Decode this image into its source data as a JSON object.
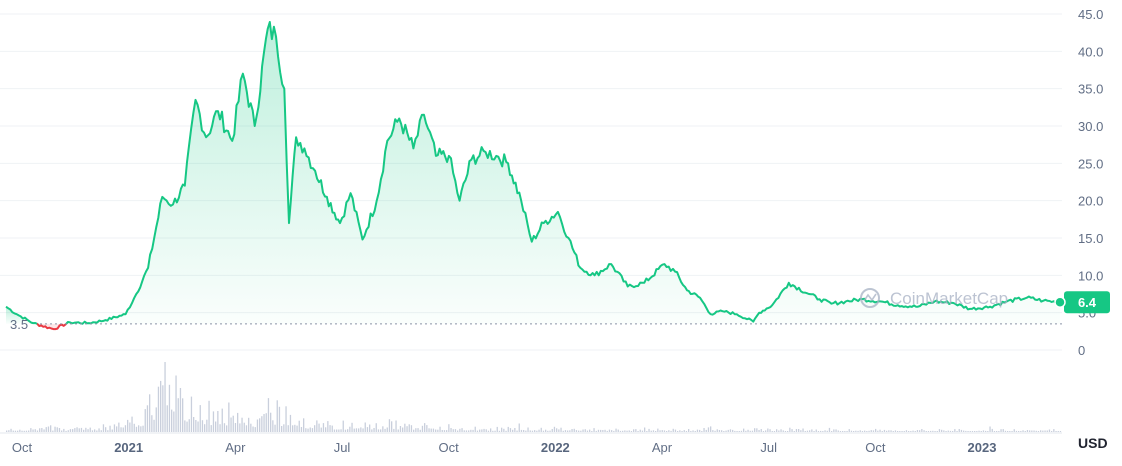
{
  "chart_data": {
    "type": "line",
    "currency_label": "USD",
    "watermark": "CoinMarketCap",
    "reference_value": 3.5,
    "reference_label": "3.5",
    "current_value": 6.4,
    "current_label": "6.4",
    "ylim": [
      0,
      45
    ],
    "yticks": [
      "45.0",
      "40.0",
      "35.0",
      "30.0",
      "25.0",
      "20.0",
      "15.0",
      "10.0",
      "5.0",
      "0"
    ],
    "ytick_values": [
      45,
      40,
      35,
      30,
      25,
      20,
      15,
      10,
      5,
      0
    ],
    "xticks": [
      {
        "label": "Oct",
        "bold": false,
        "t": 0.0
      },
      {
        "label": "2021",
        "bold": true,
        "t": 0.1
      },
      {
        "label": "Apr",
        "bold": false,
        "t": 0.2
      },
      {
        "label": "Jul",
        "bold": false,
        "t": 0.3
      },
      {
        "label": "Oct",
        "bold": false,
        "t": 0.4
      },
      {
        "label": "2022",
        "bold": true,
        "t": 0.5
      },
      {
        "label": "Apr",
        "bold": false,
        "t": 0.6
      },
      {
        "label": "Jul",
        "bold": false,
        "t": 0.7
      },
      {
        "label": "Oct",
        "bold": false,
        "t": 0.8
      },
      {
        "label": "2023",
        "bold": true,
        "t": 0.9
      }
    ],
    "x": [
      "2020-09-22",
      "2020-10-01",
      "2020-10-15",
      "2020-11-01",
      "2020-11-15",
      "2020-12-01",
      "2020-12-15",
      "2021-01-01",
      "2021-01-10",
      "2021-01-20",
      "2021-02-01",
      "2021-02-10",
      "2021-02-20",
      "2021-03-01",
      "2021-03-10",
      "2021-03-20",
      "2021-04-01",
      "2021-04-10",
      "2021-04-20",
      "2021-05-01",
      "2021-05-08",
      "2021-05-15",
      "2021-05-19",
      "2021-05-25",
      "2021-06-01",
      "2021-06-10",
      "2021-06-20",
      "2021-07-01",
      "2021-07-10",
      "2021-07-20",
      "2021-08-01",
      "2021-08-10",
      "2021-08-20",
      "2021-09-01",
      "2021-09-10",
      "2021-09-20",
      "2021-10-01",
      "2021-10-10",
      "2021-10-20",
      "2021-11-01",
      "2021-11-10",
      "2021-11-20",
      "2021-12-01",
      "2021-12-10",
      "2021-12-20",
      "2022-01-01",
      "2022-01-10",
      "2022-01-20",
      "2022-02-01",
      "2022-02-15",
      "2022-03-01",
      "2022-03-15",
      "2022-04-01",
      "2022-04-10",
      "2022-04-20",
      "2022-05-01",
      "2022-05-10",
      "2022-05-20",
      "2022-06-01",
      "2022-06-15",
      "2022-06-20",
      "2022-07-01",
      "2022-07-15",
      "2022-08-01",
      "2022-08-10",
      "2022-08-20",
      "2022-09-01",
      "2022-09-15",
      "2022-10-01",
      "2022-10-15",
      "2022-11-01",
      "2022-11-15",
      "2022-12-01",
      "2022-12-15",
      "2023-01-01",
      "2023-01-15",
      "2023-02-01",
      "2023-02-15",
      "2023-03-01"
    ],
    "y": [
      5.8,
      4.8,
      3.6,
      2.8,
      3.7,
      3.6,
      4.0,
      4.8,
      7.5,
      11.0,
      20.5,
      19.5,
      22.0,
      33.5,
      28.5,
      32.0,
      28.0,
      37.0,
      30.0,
      43.0,
      42.0,
      35.0,
      17.0,
      28.5,
      27.0,
      24.0,
      20.5,
      17.0,
      21.0,
      14.8,
      20.0,
      28.0,
      31.0,
      27.0,
      31.5,
      26.0,
      26.0,
      20.0,
      25.5,
      26.5,
      26.0,
      25.0,
      20.0,
      14.5,
      17.0,
      18.5,
      15.0,
      11.0,
      10.0,
      11.5,
      8.5,
      9.0,
      11.5,
      10.5,
      8.0,
      7.0,
      4.8,
      5.2,
      4.8,
      3.8,
      5.0,
      6.0,
      9.0,
      7.5,
      6.8,
      6.2,
      6.5,
      6.8,
      6.5,
      6.0,
      5.8,
      6.5,
      6.3,
      5.5,
      5.8,
      6.5,
      7.0,
      6.6,
      6.4
    ],
    "volume_relative": [
      0.06,
      0.05,
      0.05,
      0.05,
      0.04,
      0.05,
      0.07,
      0.12,
      0.2,
      0.3,
      0.72,
      0.55,
      0.42,
      0.38,
      0.3,
      0.25,
      0.28,
      0.24,
      0.2,
      0.32,
      0.28,
      0.22,
      0.3,
      0.2,
      0.14,
      0.12,
      0.1,
      0.1,
      0.08,
      0.09,
      0.1,
      0.12,
      0.1,
      0.09,
      0.08,
      0.07,
      0.07,
      0.06,
      0.06,
      0.05,
      0.05,
      0.05,
      0.06,
      0.05,
      0.05,
      0.04,
      0.04,
      0.04,
      0.04,
      0.04,
      0.04,
      0.03,
      0.04,
      0.04,
      0.03,
      0.03,
      0.05,
      0.04,
      0.04,
      0.05,
      0.04,
      0.03,
      0.04,
      0.03,
      0.03,
      0.03,
      0.03,
      0.03,
      0.03,
      0.03,
      0.03,
      0.03,
      0.03,
      0.03,
      0.03,
      0.03,
      0.03,
      0.03,
      0.03
    ],
    "colors": {
      "up": "#16c784",
      "down": "#ea3943",
      "grid": "#eff2f5",
      "volume": "#c9cfdc",
      "reference": "#8a93a6"
    }
  }
}
